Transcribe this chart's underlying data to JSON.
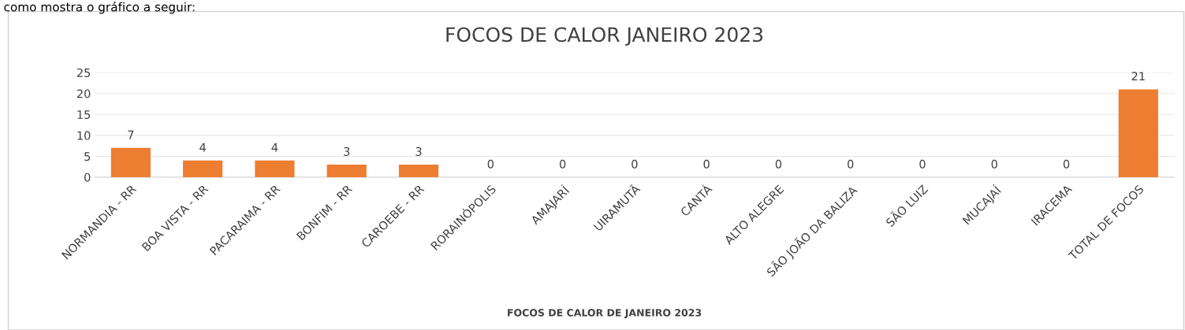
{
  "chart_data": {
    "type": "bar",
    "title": "FOCOS DE CALOR JANEIRO 2023",
    "xlabel": "FOCOS DE CALOR DE JANEIRO 2023",
    "annotations": [
      "como mostra o gráfico a seguir:"
    ],
    "categories": [
      "NORMANDIA - RR",
      "BOA VISTA - RR",
      "PACARAIMA - RR",
      "BONFIM - RR",
      "CAROEBE - RR",
      "RORAINÓPOLIS",
      "AMAJARÍ",
      "UIRAMUTÃ",
      "CANTÁ",
      "ALTO ALEGRE",
      "SÃO JOÃO DA BALIZA",
      "SÃO LUIZ",
      "MUCAJAÍ",
      "IRACEMA",
      "TOTAL DE FOCOS"
    ],
    "values": [
      7,
      4,
      4,
      3,
      3,
      0,
      0,
      0,
      0,
      0,
      0,
      0,
      0,
      0,
      21
    ],
    "color": "#ed7d31",
    "ylim": [
      0,
      25
    ],
    "yticks": [
      0,
      5,
      10,
      15,
      20,
      25
    ],
    "grid": "y",
    "data_labels": true,
    "legend": false
  }
}
